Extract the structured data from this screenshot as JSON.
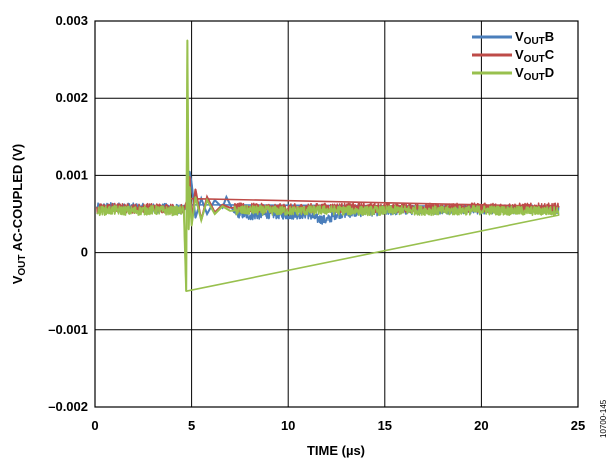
{
  "chart_data": {
    "type": "line",
    "title": "",
    "xlabel": "TIME (µs)",
    "ylabel": {
      "base": "V",
      "sub": "OUT",
      "rest": " AC-COUPLED (V)"
    },
    "xlim": [
      0,
      25
    ],
    "ylim": [
      -0.002,
      0.003
    ],
    "x_ticks": [
      {
        "value": 0,
        "label": "0"
      },
      {
        "value": 5,
        "label": "5"
      },
      {
        "value": 10,
        "label": "10"
      },
      {
        "value": 15,
        "label": "15"
      },
      {
        "value": 20,
        "label": "20"
      },
      {
        "value": 25,
        "label": "25"
      }
    ],
    "y_ticks": [
      {
        "value": -0.002,
        "label": "–0.002"
      },
      {
        "value": -0.001,
        "label": "–0.001"
      },
      {
        "value": 0,
        "label": "0"
      },
      {
        "value": 0.001,
        "label": "0.001"
      },
      {
        "value": 0.002,
        "label": "0.002"
      },
      {
        "value": 0.003,
        "label": "0.003"
      }
    ],
    "grid": true,
    "legend_position": "top-right",
    "series": [
      {
        "name": "VOUTB",
        "label_base": "V",
        "label_sub": "OUT",
        "label_suffix": "B",
        "color": "#4a7ebb",
        "x": [
          0.1,
          1,
          2,
          3,
          4,
          4.6,
          4.8,
          4.9,
          5.0,
          5.2,
          5.5,
          5.8,
          6.2,
          6.6,
          6.8,
          7.2,
          8,
          9,
          10,
          11,
          11.5,
          12,
          12.5,
          14,
          16,
          18,
          20,
          22,
          24
        ],
        "y": [
          0.00058,
          0.00059,
          0.00058,
          0.00057,
          0.00058,
          0.00055,
          0.00062,
          0.00105,
          0.0009,
          0.00045,
          0.0007,
          0.0005,
          0.00068,
          0.00058,
          0.00072,
          0.00052,
          0.00048,
          0.0005,
          0.00049,
          0.0005,
          0.00044,
          0.00042,
          0.0005,
          0.00053,
          0.00055,
          0.00056,
          0.00056,
          0.00056,
          0.00056
        ]
      },
      {
        "name": "VOUTC",
        "label_base": "V",
        "label_sub": "OUT",
        "label_suffix": "C",
        "color": "#be4b48",
        "x": [
          0.1,
          1,
          2,
          3,
          4,
          4.6,
          4.8,
          4.9,
          5.0,
          5.2,
          5.5,
          5.8,
          6.2,
          6.6,
          7,
          8,
          10,
          12,
          14,
          16,
          18,
          20,
          22,
          24
        ],
        "y": [
          0.00057,
          0.00058,
          0.00057,
          0.00058,
          0.00057,
          0.00056,
          0.0007,
          0.00098,
          0.0004,
          0.00082,
          0.00042,
          0.00072,
          0.00052,
          0.00062,
          0.00058,
          0.00058,
          0.00057,
          0.00058,
          0.00058,
          0.00058,
          0.00058,
          0.00058,
          0.00058,
          0.00058
        ]
      },
      {
        "name": "VOUTD",
        "label_base": "V",
        "label_sub": "OUT",
        "label_suffix": "D",
        "color": "#98c04e",
        "x": [
          0.1,
          1,
          2,
          3,
          4,
          4.6,
          4.72,
          4.78,
          4.85,
          4.9,
          5.0,
          5.2,
          5.5,
          5.8,
          6.2,
          6.6,
          7,
          8,
          10,
          12,
          14,
          16,
          18,
          20,
          22,
          24
        ],
        "y": [
          0.00054,
          0.00055,
          0.00054,
          0.00055,
          0.00054,
          0.00055,
          -0.0005,
          0.00275,
          0.0003,
          0.00085,
          0.00035,
          0.00072,
          0.00042,
          0.00068,
          0.0005,
          0.0006,
          0.00054,
          0.00055,
          0.00054,
          0.00055,
          0.00054,
          0.00055,
          0.00054,
          0.00055,
          0.00054,
          0.00054
        ]
      }
    ]
  },
  "figure_id": "10700-145"
}
